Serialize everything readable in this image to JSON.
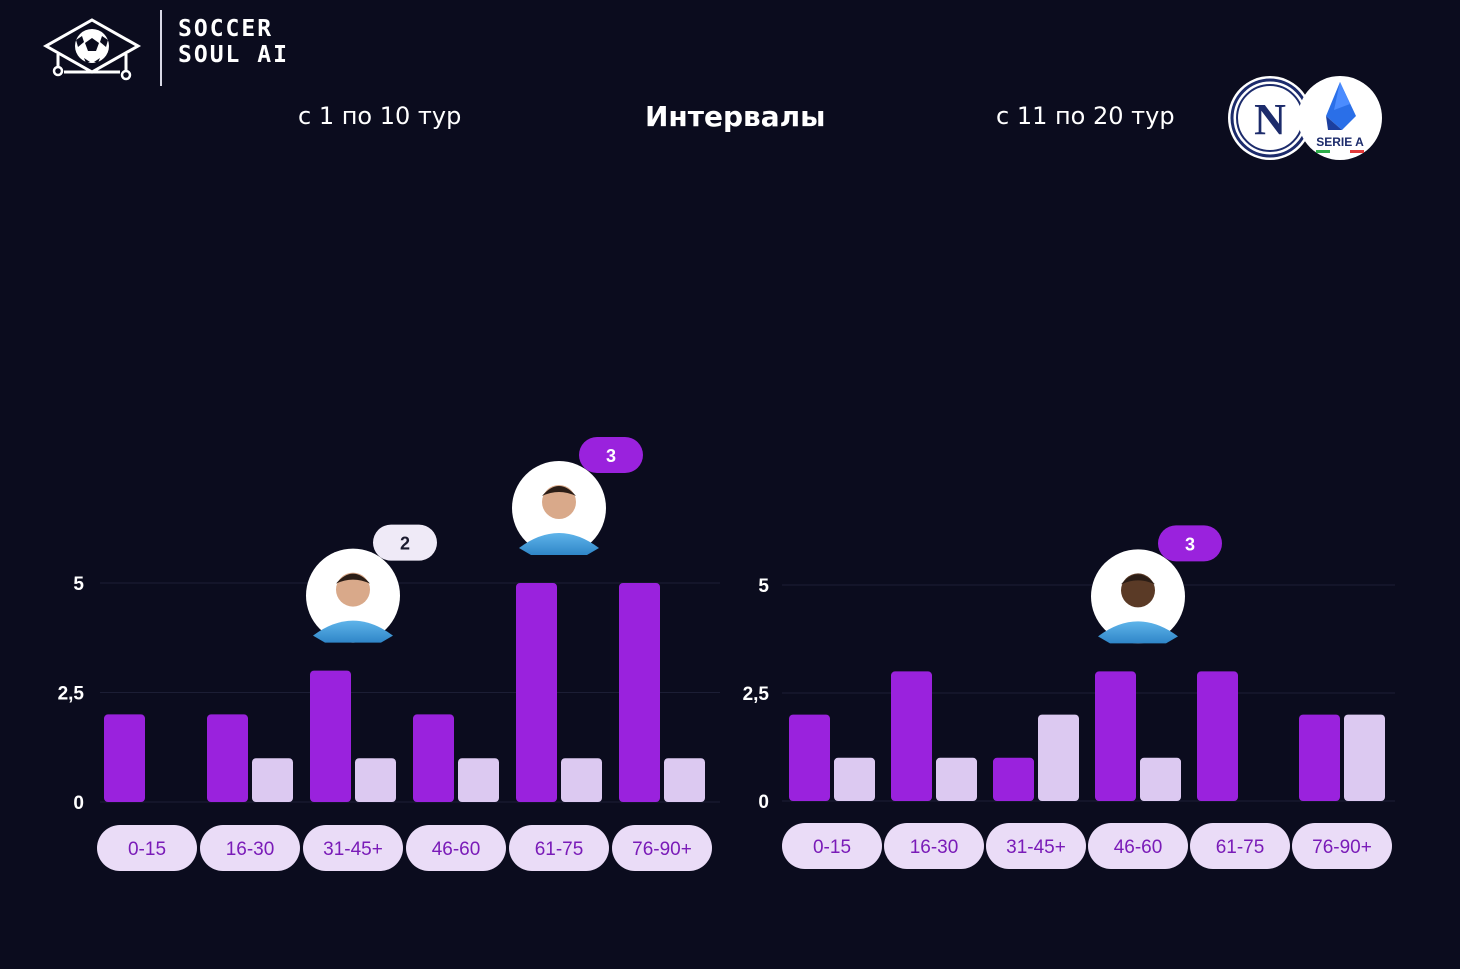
{
  "brand": {
    "line1": "SOCCER",
    "line2": "SOUL AI"
  },
  "header": {
    "left": "с 1 по 10 тур",
    "center": "Интервалы",
    "right": "с 11 по 20 тур"
  },
  "badges": {
    "napoli_letter": "N",
    "seriea_label": "SERIE A"
  },
  "colors": {
    "background": "#0b0c1e",
    "primary_bar": "#9a22dd",
    "secondary_bar": "#dcc9f1",
    "pill_bg": "#eadcf7",
    "pill_text": "#7a1bb8",
    "accent": "#9a22dd"
  },
  "chart_data": [
    {
      "type": "bar",
      "title": "с 1 по 10 тур",
      "categories": [
        "0-15",
        "16-30",
        "31-45+",
        "46-60",
        "61-75",
        "76-90+"
      ],
      "yticks": [
        "0",
        "2,5",
        "5"
      ],
      "ylim": [
        0,
        5
      ],
      "series": [
        {
          "values": [
            2,
            2,
            3,
            2,
            5,
            5
          ]
        },
        {
          "values": [
            0,
            1,
            1,
            1,
            1,
            1
          ]
        }
      ],
      "annotations": [
        {
          "category": "31-45+",
          "value": "2",
          "style": "light",
          "icon": "player-avatar-icon"
        },
        {
          "category": "61-75",
          "value": "3",
          "style": "accent",
          "icon": "player-avatar-icon"
        }
      ]
    },
    {
      "type": "bar",
      "title": "с 11 по 20 тур",
      "categories": [
        "0-15",
        "16-30",
        "31-45+",
        "46-60",
        "61-75",
        "76-90+"
      ],
      "yticks": [
        "0",
        "2,5",
        "5"
      ],
      "ylim": [
        0,
        5
      ],
      "series": [
        {
          "values": [
            2,
            3,
            1,
            3,
            3,
            2
          ]
        },
        {
          "values": [
            1,
            1,
            2,
            1,
            0,
            2
          ]
        }
      ],
      "annotations": [
        {
          "category": "46-60",
          "value": "3",
          "style": "accent",
          "icon": "player-avatar-icon"
        }
      ]
    }
  ]
}
